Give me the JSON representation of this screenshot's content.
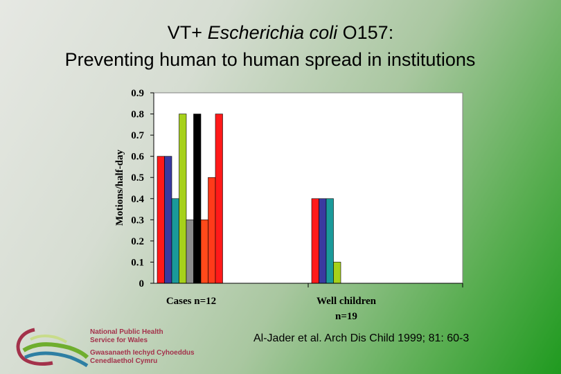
{
  "header": {
    "title_part1": "VT+ ",
    "title_italic": "Escherichia coli",
    "title_part2": " O157:",
    "subtitle": "Preventing human to human spread in institutions"
  },
  "chart_data": {
    "type": "bar",
    "ylabel": "Motions/half-day",
    "ylim": [
      0,
      0.9
    ],
    "yticks": [
      "0",
      "0.1",
      "0.2",
      "0.3",
      "0.4",
      "0.5",
      "0.6",
      "0.7",
      "0.8",
      "0.9"
    ],
    "groups": [
      {
        "label": "Cases n=12",
        "bars": [
          {
            "value": 0.6,
            "color": "#ff1a1a"
          },
          {
            "value": 0.6,
            "color": "#3a3aa0"
          },
          {
            "value": 0.4,
            "color": "#1a9a9a"
          },
          {
            "value": 0.8,
            "color": "#a6d11a"
          },
          {
            "value": 0.3,
            "color": "#8c8c8c"
          },
          {
            "value": 0.8,
            "color": "#000000"
          },
          {
            "value": 0.3,
            "color": "#ff4a1a"
          },
          {
            "value": 0.5,
            "color": "#ff3a1a"
          },
          {
            "value": 0.8,
            "color": "#ff1a1a"
          }
        ]
      },
      {
        "label_line1": "Well children",
        "label_line2": "n=19",
        "bars": [
          {
            "value": 0.4,
            "color": "#ff1a1a"
          },
          {
            "value": 0.4,
            "color": "#3a3aa0"
          },
          {
            "value": 0.4,
            "color": "#1a9a9a"
          },
          {
            "value": 0.1,
            "color": "#a6d11a"
          }
        ]
      }
    ]
  },
  "citation": "Al-Jader et al.  Arch Dis Child 1999; 81: 60-3",
  "org": {
    "line1": "National Public Health",
    "line2": "Service for Wales",
    "line3": "Gwasanaeth Iechyd Cyhoeddus",
    "line4": "Cenedlaethol Cymru"
  }
}
